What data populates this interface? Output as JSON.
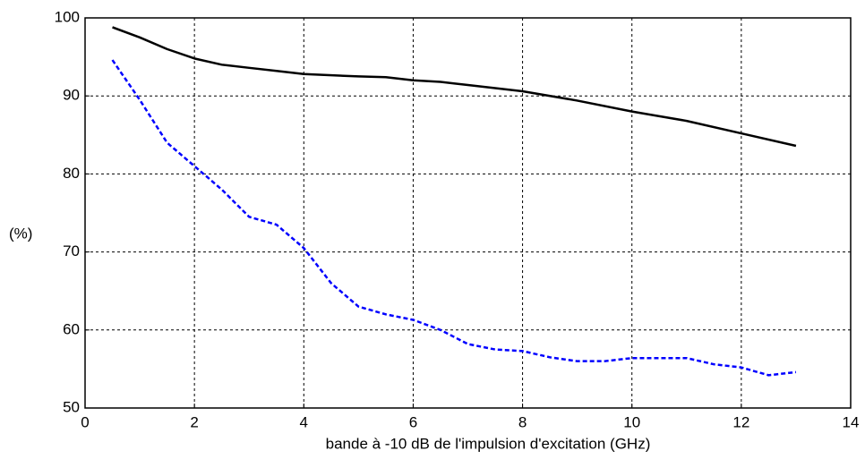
{
  "chart_data": {
    "type": "line",
    "xlabel": "bande à -10 dB de l'impulsion d'excitation (GHz)",
    "ylabel": "(%)",
    "xlim": [
      0,
      14
    ],
    "xticks": [
      0,
      2,
      4,
      6,
      8,
      10,
      12,
      14
    ],
    "ylim": [
      50,
      100
    ],
    "yticks": [
      50,
      60,
      70,
      80,
      90,
      100
    ],
    "grid": true,
    "series": [
      {
        "color": "#000000",
        "dash": false,
        "x": [
          0.5,
          1,
          1.5,
          2,
          2.5,
          3,
          3.5,
          4,
          5,
          5.5,
          6,
          6.5,
          7,
          8,
          9,
          10,
          11,
          12,
          13
        ],
        "values": [
          98.8,
          97.5,
          96,
          94.8,
          94,
          93.6,
          93.2,
          92.8,
          92.5,
          92.4,
          92,
          91.8,
          91.4,
          90.6,
          89.4,
          88,
          86.8,
          85.2,
          83.6
        ]
      },
      {
        "color": "#0000ff",
        "dash": true,
        "x": [
          0.5,
          1,
          1.5,
          2,
          2.5,
          3,
          3.5,
          4,
          4.5,
          5,
          5.5,
          6,
          6.5,
          7,
          7.5,
          8,
          8.5,
          9,
          9.5,
          10,
          10.5,
          11,
          11.5,
          12,
          12.5,
          13
        ],
        "values": [
          94.6,
          89.5,
          84,
          81,
          78,
          74.5,
          73.5,
          70.5,
          66,
          63,
          62,
          61.3,
          60,
          58.2,
          57.5,
          57.3,
          56.5,
          56,
          56,
          56.4,
          56.4,
          56.4,
          55.6,
          55.2,
          54.2,
          54.6
        ]
      }
    ]
  }
}
